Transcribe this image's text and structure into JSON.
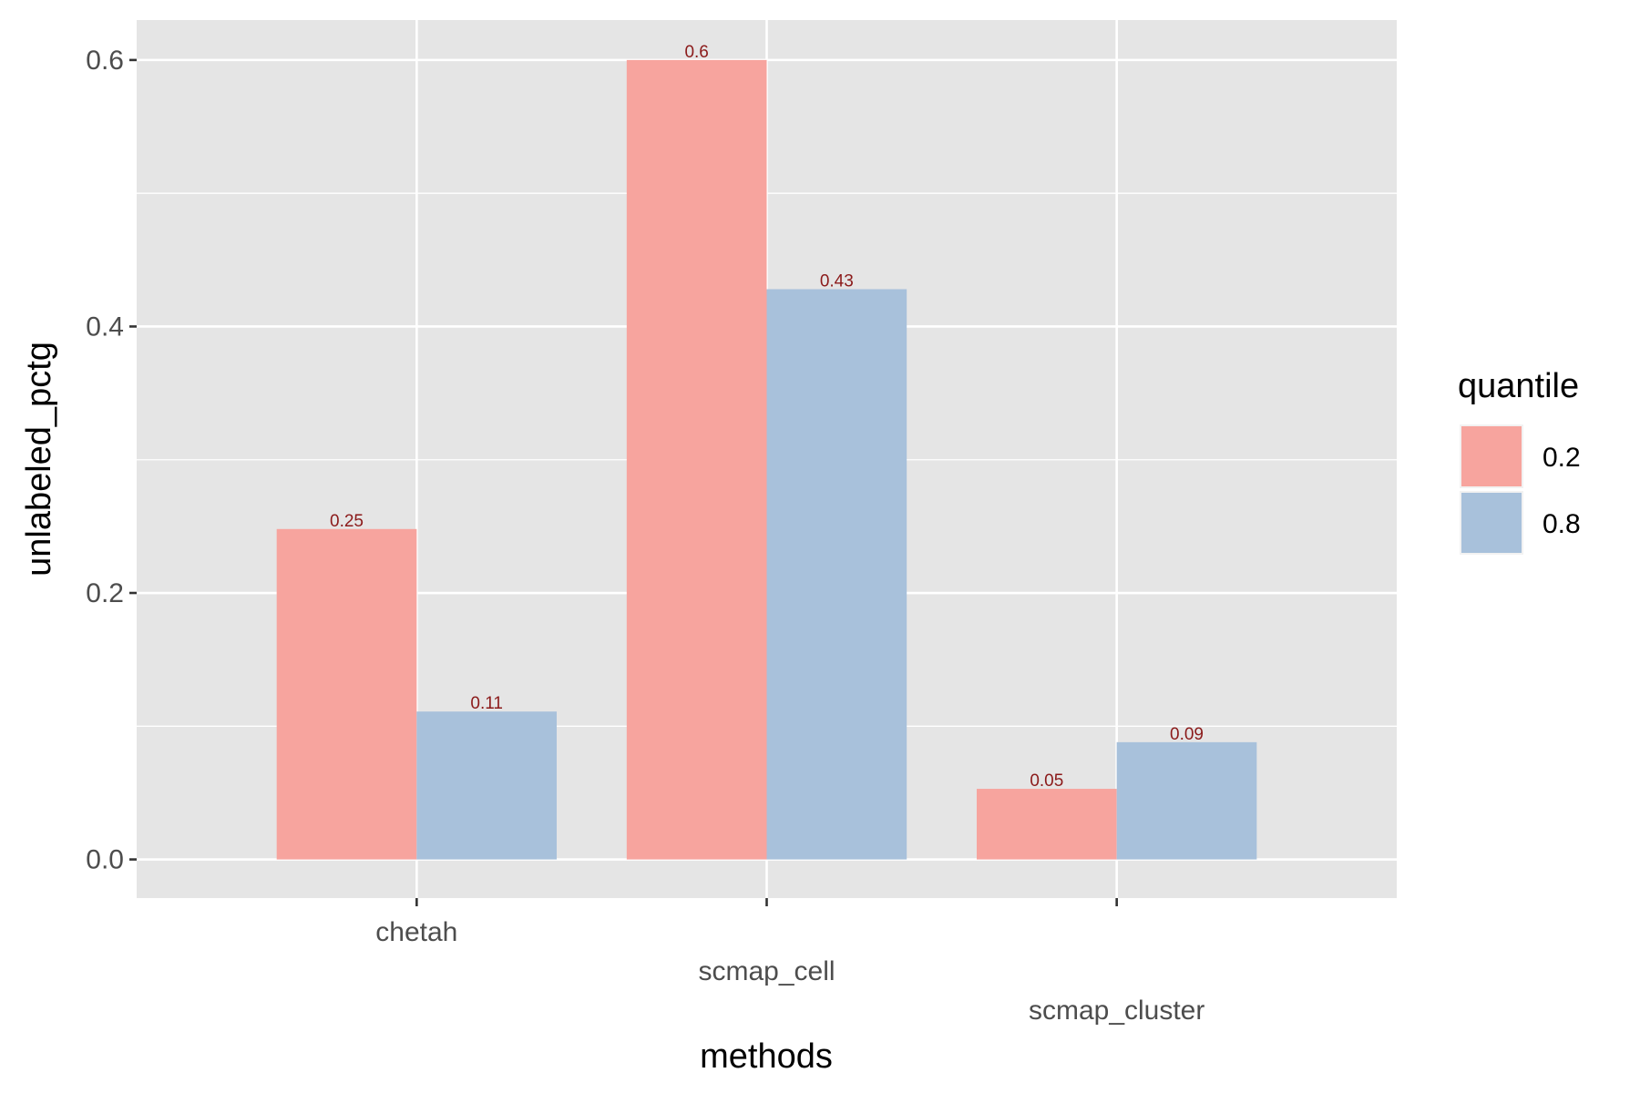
{
  "chart_data": {
    "type": "bar",
    "xlabel": "methods",
    "ylabel": "unlabeled_pctg",
    "categories": [
      "chetah",
      "scmap_cell",
      "scmap_cluster"
    ],
    "ylim": [
      -0.029,
      0.63
    ],
    "yticks": [
      0.0,
      0.2,
      0.4,
      0.6
    ],
    "ytick_labels": [
      "0.0",
      "0.2",
      "0.4",
      "0.6"
    ],
    "grid": true,
    "legend": {
      "title": "quantile",
      "position": "right"
    },
    "series": [
      {
        "name": "0.2",
        "color": "#F7A49E",
        "values": [
          0.248,
          0.6,
          0.053
        ],
        "labels": [
          "0.25",
          "0.6",
          "0.05"
        ]
      },
      {
        "name": "0.8",
        "color": "#A8C1DB",
        "values": [
          0.111,
          0.428,
          0.088
        ],
        "labels": [
          "0.11",
          "0.43",
          "0.09"
        ]
      }
    ],
    "colors": {
      "panel_background": "#E5E5E5",
      "grid": "#FFFFFF",
      "label_text": "#8B1A1A"
    }
  }
}
